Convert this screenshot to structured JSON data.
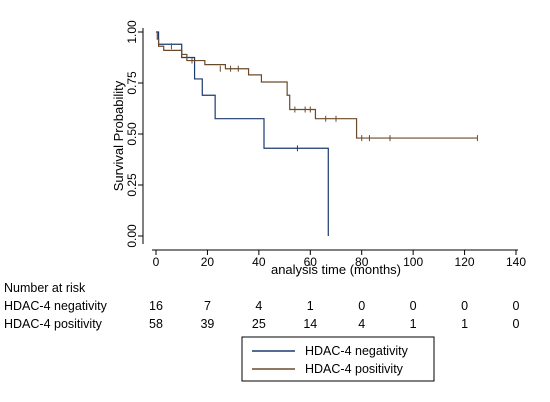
{
  "chart_data": {
    "type": "line",
    "subtype": "kaplan-meier",
    "title": "",
    "xlabel": "analysis time (months)",
    "ylabel": "Survival Probability",
    "xlim": [
      0,
      140
    ],
    "ylim": [
      0,
      1
    ],
    "xticks": [
      "0",
      "20",
      "40",
      "60",
      "80",
      "100",
      "120",
      "140"
    ],
    "yticks": [
      "0.00",
      "0.25",
      "0.50",
      "0.75",
      "1.00"
    ],
    "grid": false,
    "series": [
      {
        "name": "HDAC-4 negativity",
        "color": "#1c3a6e",
        "steps": [
          [
            0,
            1.0
          ],
          [
            1,
            0.94
          ],
          [
            10,
            0.875
          ],
          [
            15,
            0.77
          ],
          [
            18,
            0.69
          ],
          [
            23,
            0.575
          ],
          [
            42,
            0.43
          ],
          [
            67,
            0.0
          ]
        ],
        "end": 67,
        "censored": [
          [
            55,
            0.43
          ]
        ]
      },
      {
        "name": "HDAC-4 positivity",
        "color": "#6b4a2a",
        "steps": [
          [
            0,
            1.0
          ],
          [
            0.5,
            0.965
          ],
          [
            1,
            0.93
          ],
          [
            3,
            0.91
          ],
          [
            10,
            0.89
          ],
          [
            12,
            0.86
          ],
          [
            19,
            0.84
          ],
          [
            27,
            0.82
          ],
          [
            36,
            0.79
          ],
          [
            41,
            0.755
          ],
          [
            51,
            0.69
          ],
          [
            52,
            0.62
          ],
          [
            62,
            0.575
          ],
          [
            78,
            0.48
          ]
        ],
        "end": 125,
        "censored": [
          [
            6,
            0.93
          ],
          [
            14,
            0.86
          ],
          [
            25,
            0.82
          ],
          [
            29,
            0.82
          ],
          [
            32,
            0.82
          ],
          [
            54,
            0.62
          ],
          [
            58,
            0.62
          ],
          [
            60,
            0.62
          ],
          [
            66,
            0.575
          ],
          [
            70,
            0.575
          ],
          [
            80,
            0.48
          ],
          [
            83,
            0.48
          ],
          [
            91,
            0.48
          ],
          [
            125,
            0.48
          ]
        ]
      }
    ],
    "risk_table": {
      "title": "Number at risk",
      "timepoints": [
        0,
        20,
        40,
        60,
        80,
        100,
        120,
        140
      ],
      "rows": [
        {
          "label": "HDAC-4 negativity",
          "values": [
            "16",
            "7",
            "4",
            "1",
            "0",
            "0",
            "0",
            "0"
          ]
        },
        {
          "label": "HDAC-4 positivity",
          "values": [
            "58",
            "39",
            "25",
            "14",
            "4",
            "1",
            "1",
            "0"
          ]
        }
      ]
    },
    "legend": {
      "placement": "bottom-right",
      "entries": [
        "HDAC-4 negativity",
        "HDAC-4 positivity"
      ]
    }
  }
}
